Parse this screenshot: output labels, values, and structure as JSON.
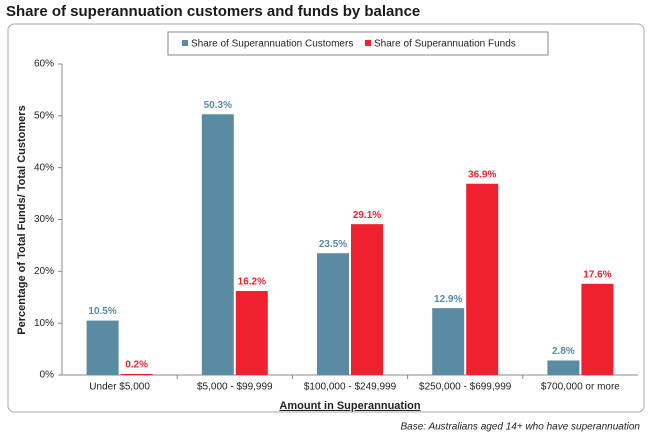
{
  "chart_data": {
    "type": "bar",
    "title": "Share of superannuation customers and funds by balance",
    "categories": [
      "Under $5,000",
      "$5,000 - $99,999",
      "$100,000 - $249,999",
      "$250,000 - $699,999",
      "$700,000 or more"
    ],
    "series": [
      {
        "name": "Share of Superannuation Customers",
        "color": "#5b8ba3",
        "values": [
          10.5,
          50.3,
          23.5,
          12.9,
          2.8
        ],
        "value_labels": [
          "10.5%",
          "50.3%",
          "23.5%",
          "12.9%",
          "2.8%"
        ]
      },
      {
        "name": "Share of Superannuation Funds",
        "color": "#f0202e",
        "values": [
          0.2,
          16.2,
          29.1,
          36.9,
          17.6
        ],
        "value_labels": [
          "0.2%",
          "16.2%",
          "29.1%",
          "36.9%",
          "17.6%"
        ]
      }
    ],
    "ylim": [
      0,
      60
    ],
    "yticks": [
      {
        "value": 0,
        "label": "0%"
      },
      {
        "value": 10,
        "label": "10%"
      },
      {
        "value": 20,
        "label": "20%"
      },
      {
        "value": 30,
        "label": "30%"
      },
      {
        "value": 40,
        "label": "40%"
      },
      {
        "value": 50,
        "label": "50%"
      },
      {
        "value": 60,
        "label": "60%"
      }
    ],
    "x_label": "Amount in Superannuation",
    "y_label": "Percentage of Total Funds/ Total Customers",
    "note": "Base: Australians aged 14+ who have superannuation",
    "legend": "top"
  }
}
